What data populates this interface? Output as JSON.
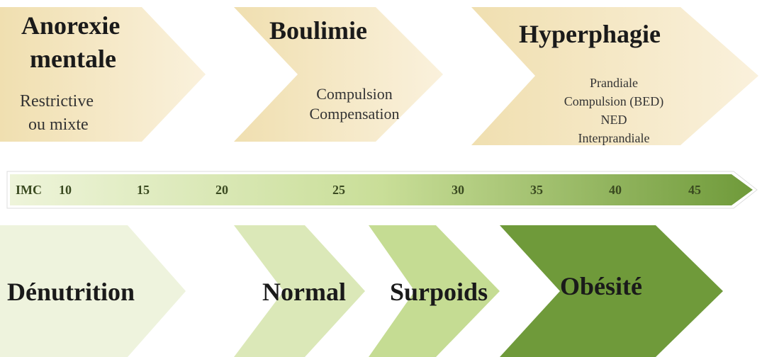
{
  "top": [
    {
      "title": [
        "Anorexie",
        "mentale"
      ],
      "lines": [
        "Restrictive",
        "ou mixte"
      ]
    },
    {
      "title": [
        "Boulimie"
      ],
      "lines": [
        "Compulsion",
        "Compensation"
      ]
    },
    {
      "title": [
        "Hyperphagie"
      ],
      "lines": [
        "Prandiale",
        "Compulsion (BED)",
        "NED",
        "Interprandiale"
      ]
    }
  ],
  "scale": {
    "label": "IMC",
    "ticks": [
      10,
      15,
      20,
      25,
      30,
      35,
      40,
      45
    ]
  },
  "bottom": [
    "Dénutrition",
    "Normal",
    "Surpoids",
    "Obésité"
  ]
}
